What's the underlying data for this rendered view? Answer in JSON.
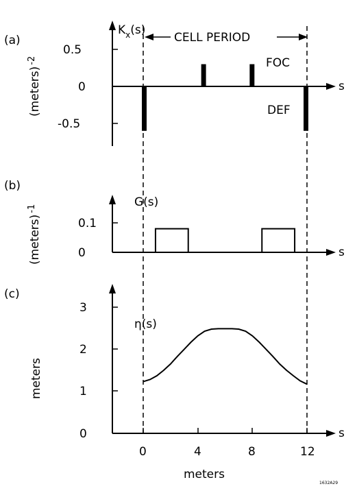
{
  "panels": {
    "a": {
      "tag": "(a)",
      "func_label": "K",
      "func_sub": "x",
      "func_arg": "(s)",
      "ylabel": "(meters)",
      "ylabel_exp": "-2",
      "cell_period": "CELL PERIOD",
      "foc": "FOC",
      "def": "DEF",
      "xaxis_label": "s",
      "yticks": [
        "0.5",
        "0",
        "-0.5"
      ]
    },
    "b": {
      "tag": "(b)",
      "func_label": "G(s)",
      "ylabel": "(meters)",
      "ylabel_exp": "-1",
      "xaxis_label": "s",
      "yticks": [
        "0.1",
        "0"
      ]
    },
    "c": {
      "tag": "(c)",
      "func_label": "η(s)",
      "ylabel": "meters",
      "xaxis_label": "s",
      "yticks": [
        "3",
        "2",
        "1",
        "0"
      ],
      "xticks": [
        "0",
        "4",
        "8",
        "12"
      ],
      "xlabel": "meters"
    }
  },
  "corner_code": "1632A29",
  "chart_data": [
    {
      "type": "bar",
      "panel": "a",
      "description_units": "K_x in (meters)^-2 vs s in meters",
      "ylim": [
        -0.75,
        0.9
      ],
      "magnets": [
        {
          "kind": "DEF",
          "s_start": -0.1,
          "s_end": 0.25,
          "k": -0.6
        },
        {
          "kind": "FOC",
          "s_start": 4.25,
          "s_end": 4.6,
          "k": 0.3
        },
        {
          "kind": "FOC",
          "s_start": 7.8,
          "s_end": 8.15,
          "k": 0.3
        },
        {
          "kind": "DEF",
          "s_start": 11.75,
          "s_end": 12.1,
          "k": -0.6
        }
      ]
    },
    {
      "type": "bar",
      "panel": "b",
      "ylim": [
        0,
        0.22
      ],
      "dipoles": [
        {
          "s_start": 0.9,
          "s_end": 3.3,
          "g": 0.08
        },
        {
          "s_start": 8.7,
          "s_end": 11.1,
          "g": 0.08
        }
      ]
    },
    {
      "type": "line",
      "panel": "c",
      "xlim": [
        -1.5,
        14.5
      ],
      "ylim": [
        0,
        3.5
      ],
      "x": [
        0,
        0.5,
        1,
        1.5,
        2,
        2.5,
        3,
        3.5,
        4,
        4.5,
        5,
        5.5,
        6,
        6.5,
        7,
        7.5,
        8,
        8.5,
        9,
        9.5,
        10,
        10.5,
        11,
        11.5,
        12
      ],
      "y": [
        1.23,
        1.28,
        1.37,
        1.5,
        1.65,
        1.83,
        2.0,
        2.17,
        2.32,
        2.43,
        2.48,
        2.49,
        2.49,
        2.49,
        2.48,
        2.43,
        2.32,
        2.17,
        2.0,
        1.83,
        1.65,
        1.5,
        1.37,
        1.25,
        1.17
      ]
    }
  ]
}
